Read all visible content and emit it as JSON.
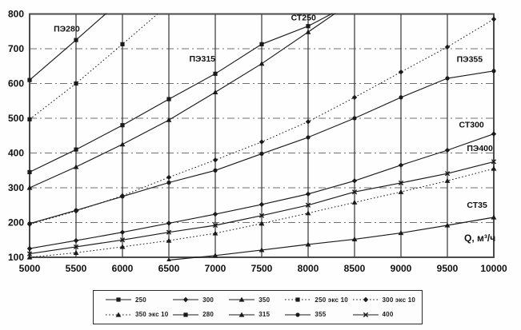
{
  "chart_data": {
    "type": "line",
    "xlabel": "Q, м³/ч",
    "ylabel": "",
    "xlim": [
      5000,
      10000
    ],
    "ylim": [
      100,
      800
    ],
    "x_ticks": [
      5000,
      5500,
      6000,
      6500,
      7000,
      7500,
      8000,
      8500,
      9000,
      9500,
      10000
    ],
    "y_ticks": [
      100,
      200,
      300,
      400,
      500,
      600,
      700,
      800
    ],
    "grid": true,
    "legend_position": "bottom",
    "x": [
      5000,
      5500,
      6000,
      6500,
      7000,
      7500,
      8000,
      8500,
      9000,
      9500,
      10000
    ],
    "series": [
      {
        "name": "250",
        "chart_label": "СТ250",
        "line": "solid",
        "marker": "square",
        "values": [
          345,
          410,
          480,
          555,
          628,
          713,
          765,
          835,
          null,
          null,
          null
        ]
      },
      {
        "name": "300",
        "chart_label": "СТ300",
        "line": "solid",
        "marker": "diamond",
        "values": [
          125,
          148,
          172,
          198,
          224,
          252,
          282,
          320,
          365,
          408,
          455
        ]
      },
      {
        "name": "350",
        "chart_label": "СТ35",
        "line": "solid",
        "marker": "triangle",
        "values": [
          null,
          null,
          null,
          92,
          105,
          121,
          137,
          152,
          170,
          192,
          215
        ]
      },
      {
        "name": "250 экс 10",
        "chart_label": "",
        "line": "dotted",
        "marker": "square",
        "values": [
          497,
          600,
          713,
          828,
          null,
          null,
          null,
          null,
          null,
          null,
          null
        ]
      },
      {
        "name": "300 экс 10",
        "chart_label": "",
        "line": "dotted",
        "marker": "diamond",
        "values": [
          195,
          233,
          277,
          330,
          380,
          432,
          490,
          560,
          633,
          705,
          785
        ]
      },
      {
        "name": "350 экс 10",
        "chart_label": "",
        "line": "dotted",
        "marker": "triangle",
        "values": [
          100,
          113,
          130,
          148,
          169,
          197,
          227,
          258,
          288,
          320,
          355
        ]
      },
      {
        "name": "280",
        "chart_label": "ПЭ280",
        "line": "solid",
        "marker": "square",
        "values": [
          610,
          725,
          843,
          null,
          null,
          null,
          null,
          null,
          null,
          null,
          null
        ]
      },
      {
        "name": "315",
        "chart_label": "ПЭ315",
        "line": "solid",
        "marker": "triangle",
        "values": [
          300,
          360,
          425,
          495,
          575,
          657,
          748,
          840,
          null,
          null,
          null
        ]
      },
      {
        "name": "355",
        "chart_label": "ПЭ355",
        "line": "solid",
        "marker": "circle",
        "values": [
          197,
          235,
          275,
          315,
          350,
          398,
          445,
          500,
          560,
          615,
          636
        ]
      },
      {
        "name": "400",
        "chart_label": "ПЭ400",
        "line": "solid",
        "marker": "x",
        "values": [
          110,
          130,
          150,
          172,
          192,
          220,
          250,
          288,
          314,
          341,
          375
        ]
      }
    ],
    "legend_order": [
      "250",
      "300",
      "350",
      "250 экс 10",
      "300 экс 10",
      "350 экс 10",
      "280",
      "315",
      "355",
      "400"
    ],
    "annotations": [
      {
        "text": "ПЭ280",
        "q": 5400,
        "v": 750
      },
      {
        "text": "СТ250",
        "q": 7950,
        "v": 782
      },
      {
        "text": "ПЭ315",
        "q": 6860,
        "v": 663
      },
      {
        "text": "ПЭ355",
        "q": 9740,
        "v": 662
      },
      {
        "text": "СТ300",
        "q": 9760,
        "v": 474
      },
      {
        "text": "ПЭ400",
        "q": 9850,
        "v": 406
      },
      {
        "text": "СТ35",
        "q": 9820,
        "v": 243
      }
    ],
    "xlabel_annotation": {
      "text": "Q, м³/ч",
      "q": 9850,
      "v": 146
    },
    "colors": {
      "line": "#1a1a1a",
      "grid_h": "#707070",
      "grid_v": "#333333",
      "frame": "#4a4a4a",
      "text": "#111111"
    }
  }
}
